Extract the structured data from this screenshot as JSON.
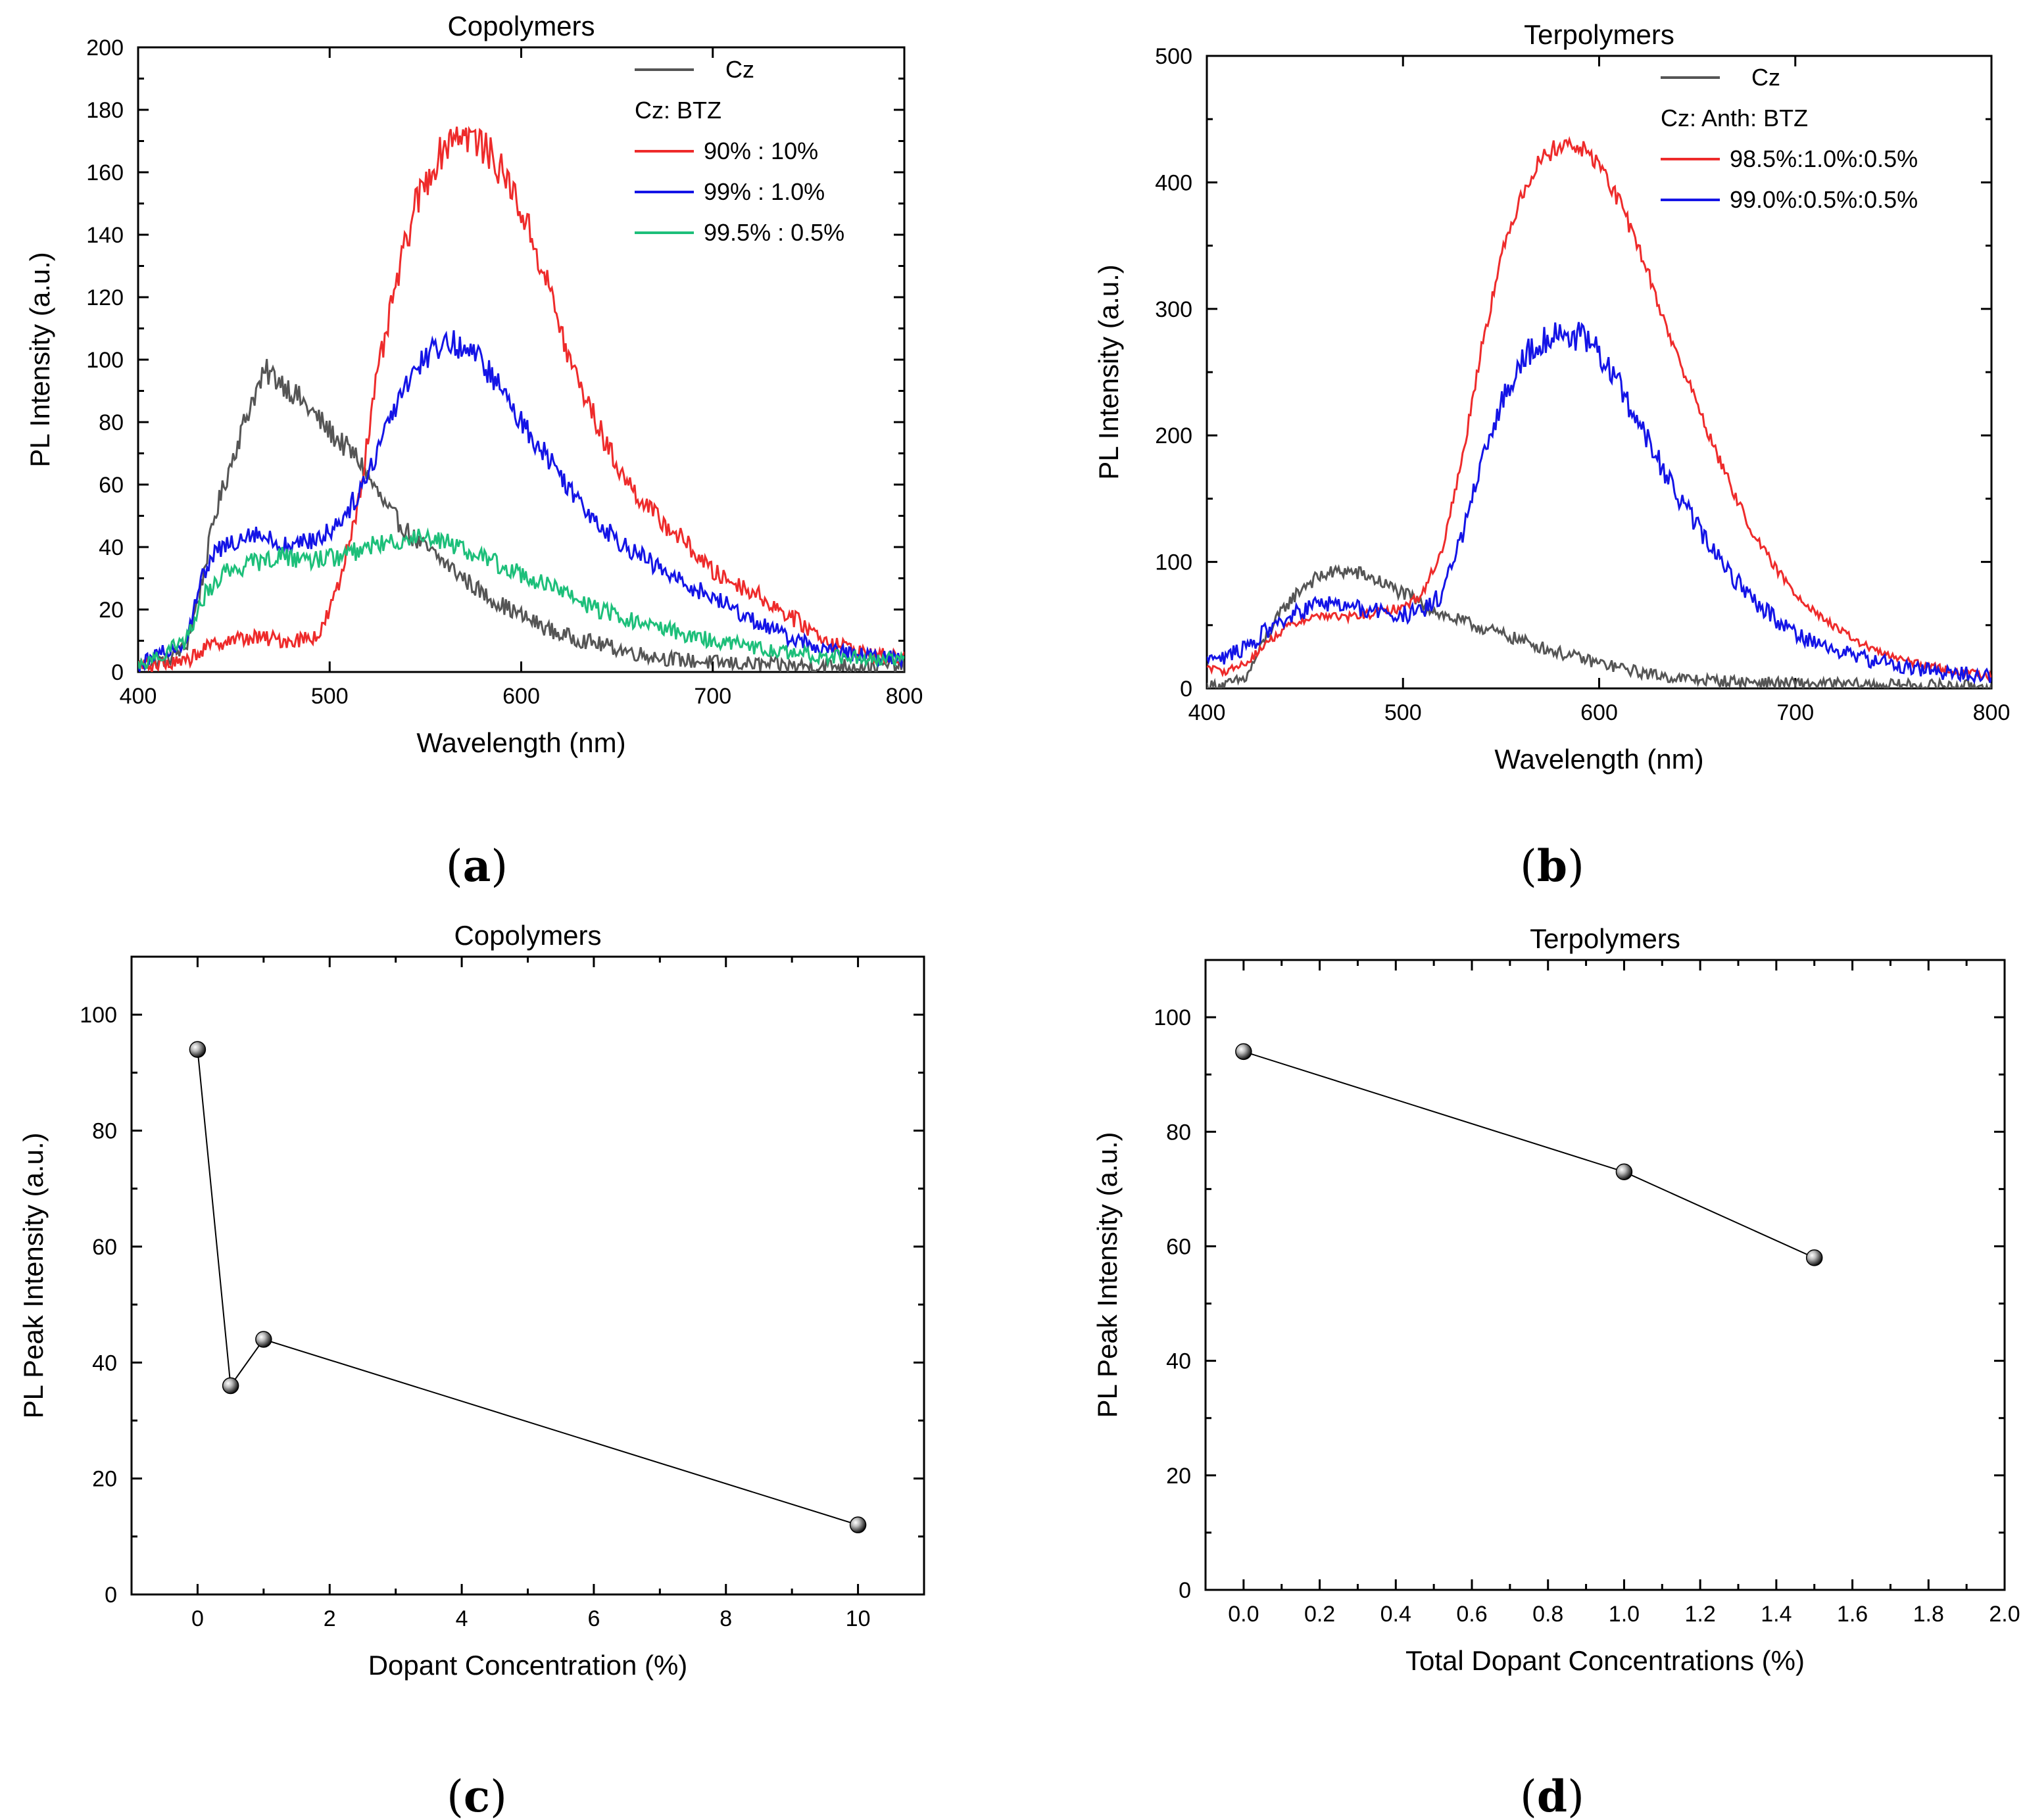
{
  "chart_data": [
    {
      "type": "line",
      "panel": "(a)",
      "panel_letter": "a",
      "title": "Copolymers",
      "xlabel": "Wavelength (nm)",
      "ylabel": "PL Intensity (a.u.)",
      "xlim": [
        400,
        800
      ],
      "ylim": [
        0,
        200
      ],
      "xticks": [
        400,
        500,
        600,
        700,
        800
      ],
      "yticks": [
        0,
        20,
        40,
        60,
        80,
        100,
        120,
        140,
        160,
        180,
        200
      ],
      "legend": {
        "position": "top-right",
        "header": "Cz: BTZ",
        "entries": [
          "Cz",
          "90% : 10%",
          "99% : 1.0%",
          "99.5% : 0.5%"
        ]
      },
      "series": [
        {
          "name": "Cz",
          "color": "#555555",
          "noise": 4,
          "points": [
            [
              400,
              2
            ],
            [
              415,
              4
            ],
            [
              425,
              8
            ],
            [
              432,
              25
            ],
            [
              440,
              50
            ],
            [
              450,
              70
            ],
            [
              460,
              88
            ],
            [
              467,
              96
            ],
            [
              475,
              93
            ],
            [
              485,
              87
            ],
            [
              500,
              77
            ],
            [
              515,
              68
            ],
            [
              530,
              52
            ],
            [
              545,
              42
            ],
            [
              560,
              35
            ],
            [
              580,
              25
            ],
            [
              600,
              18
            ],
            [
              620,
              12
            ],
            [
              640,
              9
            ],
            [
              660,
              6
            ],
            [
              680,
              4
            ],
            [
              700,
              3
            ],
            [
              740,
              2
            ],
            [
              800,
              2
            ]
          ]
        },
        {
          "name": "90% : 10%",
          "color": "#ee2b2b",
          "noise": 4,
          "points": [
            [
              400,
              2
            ],
            [
              425,
              3
            ],
            [
              430,
              6
            ],
            [
              445,
              10
            ],
            [
              460,
              11
            ],
            [
              480,
              10
            ],
            [
              495,
              12
            ],
            [
              505,
              28
            ],
            [
              515,
              55
            ],
            [
              525,
              95
            ],
            [
              535,
              125
            ],
            [
              545,
              150
            ],
            [
              555,
              163
            ],
            [
              565,
              173
            ],
            [
              575,
              171
            ],
            [
              585,
              165
            ],
            [
              595,
              155
            ],
            [
              605,
              140
            ],
            [
              615,
              122
            ],
            [
              625,
              100
            ],
            [
              635,
              86
            ],
            [
              645,
              72
            ],
            [
              655,
              61
            ],
            [
              670,
              50
            ],
            [
              685,
              42
            ],
            [
              700,
              32
            ],
            [
              720,
              26
            ],
            [
              740,
              18
            ],
            [
              760,
              10
            ],
            [
              780,
              6
            ],
            [
              800,
              4
            ]
          ]
        },
        {
          "name": "99% : 1.0%",
          "color": "#1414e6",
          "noise": 4,
          "points": [
            [
              400,
              2
            ],
            [
              425,
              10
            ],
            [
              432,
              28
            ],
            [
              440,
              38
            ],
            [
              450,
              42
            ],
            [
              460,
              45
            ],
            [
              470,
              42
            ],
            [
              480,
              40
            ],
            [
              490,
              42
            ],
            [
              500,
              45
            ],
            [
              510,
              52
            ],
            [
              520,
              63
            ],
            [
              530,
              80
            ],
            [
              540,
              93
            ],
            [
              550,
              101
            ],
            [
              560,
              106
            ],
            [
              570,
              104
            ],
            [
              580,
              99
            ],
            [
              590,
              90
            ],
            [
              600,
              80
            ],
            [
              615,
              68
            ],
            [
              630,
              55
            ],
            [
              645,
              45
            ],
            [
              660,
              38
            ],
            [
              680,
              30
            ],
            [
              700,
              24
            ],
            [
              720,
              17
            ],
            [
              740,
              11
            ],
            [
              760,
              7
            ],
            [
              780,
              5
            ],
            [
              800,
              4
            ]
          ]
        },
        {
          "name": "99.5% : 0.5%",
          "color": "#1dbf7a",
          "noise": 4,
          "points": [
            [
              400,
              2
            ],
            [
              425,
              10
            ],
            [
              435,
              25
            ],
            [
              445,
              32
            ],
            [
              460,
              35
            ],
            [
              475,
              37
            ],
            [
              490,
              36
            ],
            [
              505,
              37
            ],
            [
              520,
              40
            ],
            [
              535,
              42
            ],
            [
              550,
              44
            ],
            [
              560,
              42
            ],
            [
              575,
              38
            ],
            [
              590,
              34
            ],
            [
              605,
              30
            ],
            [
              620,
              26
            ],
            [
              640,
              20
            ],
            [
              660,
              16
            ],
            [
              680,
              13
            ],
            [
              700,
              10
            ],
            [
              720,
              8
            ],
            [
              740,
              6
            ],
            [
              760,
              5
            ],
            [
              800,
              4
            ]
          ]
        }
      ]
    },
    {
      "type": "line",
      "panel": "(b)",
      "panel_letter": "b",
      "title": "Terpolymers",
      "xlabel": "Wavelength (nm)",
      "ylabel": "PL Intensity (a.u.)",
      "xlim": [
        400,
        800
      ],
      "ylim": [
        0,
        500
      ],
      "xticks": [
        400,
        500,
        600,
        700,
        800
      ],
      "yticks": [
        0,
        100,
        200,
        300,
        400,
        500
      ],
      "legend": {
        "position": "top-right",
        "header": "Cz: Anth: BTZ",
        "entries": [
          "Cz",
          "98.5%:1.0%:0.5%",
          "99.0%:0.5%:0.5%"
        ]
      },
      "series": [
        {
          "name": "Cz",
          "color": "#555555",
          "noise": 3,
          "points": [
            [
              400,
              2
            ],
            [
              410,
              3
            ],
            [
              420,
              8
            ],
            [
              430,
              40
            ],
            [
              440,
              65
            ],
            [
              450,
              82
            ],
            [
              460,
              90
            ],
            [
              470,
              93
            ],
            [
              480,
              90
            ],
            [
              490,
              83
            ],
            [
              500,
              75
            ],
            [
              510,
              67
            ],
            [
              520,
              58
            ],
            [
              540,
              48
            ],
            [
              560,
              38
            ],
            [
              580,
              28
            ],
            [
              600,
              20
            ],
            [
              620,
              13
            ],
            [
              640,
              8
            ],
            [
              660,
              6
            ],
            [
              680,
              5
            ],
            [
              700,
              4
            ],
            [
              740,
              3
            ],
            [
              800,
              2
            ]
          ]
        },
        {
          "name": "98.5%:1.0%:0.5%",
          "color": "#ee2b2b",
          "noise": 2,
          "points": [
            [
              400,
              15
            ],
            [
              410,
              14
            ],
            [
              420,
              20
            ],
            [
              430,
              35
            ],
            [
              440,
              48
            ],
            [
              450,
              55
            ],
            [
              460,
              58
            ],
            [
              470,
              56
            ],
            [
              480,
              58
            ],
            [
              490,
              61
            ],
            [
              500,
              64
            ],
            [
              510,
              75
            ],
            [
              520,
              110
            ],
            [
              530,
              180
            ],
            [
              540,
              270
            ],
            [
              550,
              340
            ],
            [
              560,
              390
            ],
            [
              570,
              418
            ],
            [
              580,
              430
            ],
            [
              590,
              428
            ],
            [
              600,
              415
            ],
            [
              610,
              385
            ],
            [
              620,
              350
            ],
            [
              630,
              305
            ],
            [
              640,
              262
            ],
            [
              650,
              225
            ],
            [
              660,
              185
            ],
            [
              670,
              150
            ],
            [
              680,
              118
            ],
            [
              690,
              95
            ],
            [
              700,
              75
            ],
            [
              720,
              48
            ],
            [
              740,
              30
            ],
            [
              760,
              20
            ],
            [
              780,
              14
            ],
            [
              800,
              10
            ]
          ]
        },
        {
          "name": "99.0%:0.5%:0.5%",
          "color": "#1414e6",
          "noise": 4,
          "points": [
            [
              400,
              28
            ],
            [
              410,
              25
            ],
            [
              420,
              32
            ],
            [
              430,
              45
            ],
            [
              440,
              55
            ],
            [
              450,
              62
            ],
            [
              460,
              68
            ],
            [
              470,
              65
            ],
            [
              480,
              62
            ],
            [
              490,
              60
            ],
            [
              500,
              58
            ],
            [
              510,
              60
            ],
            [
              520,
              75
            ],
            [
              530,
              120
            ],
            [
              540,
              175
            ],
            [
              550,
              225
            ],
            [
              560,
              260
            ],
            [
              570,
              275
            ],
            [
              580,
              280
            ],
            [
              590,
              278
            ],
            [
              600,
              265
            ],
            [
              610,
              240
            ],
            [
              620,
              210
            ],
            [
              630,
              180
            ],
            [
              640,
              152
            ],
            [
              650,
              128
            ],
            [
              660,
              105
            ],
            [
              670,
              85
            ],
            [
              680,
              68
            ],
            [
              690,
              55
            ],
            [
              700,
              44
            ],
            [
              720,
              30
            ],
            [
              740,
              22
            ],
            [
              760,
              16
            ],
            [
              780,
              12
            ],
            [
              800,
              10
            ]
          ]
        }
      ]
    },
    {
      "type": "scatter",
      "panel": "(c)",
      "panel_letter": "c",
      "title": "Copolymers",
      "xlabel": "Dopant Concentration (%)",
      "ylabel": "PL Peak Intensity (a.u.)",
      "xlim": [
        -1,
        11
      ],
      "ylim": [
        0,
        110
      ],
      "xticks": [
        0,
        2,
        4,
        6,
        8,
        10
      ],
      "yticks": [
        0,
        20,
        40,
        60,
        80,
        100
      ],
      "x": [
        0,
        0.5,
        1.0,
        10
      ],
      "y": [
        94,
        36,
        44,
        12
      ]
    },
    {
      "type": "scatter",
      "panel": "(d)",
      "panel_letter": "d",
      "title": "Terpolymers",
      "xlabel": "Total Dopant Concentrations (%)",
      "ylabel": "PL Peak Intensity (a.u.)",
      "xlim": [
        -0.1,
        2.0
      ],
      "ylim": [
        0,
        110
      ],
      "xticks": [
        0.0,
        0.2,
        0.4,
        0.6,
        0.8,
        1.0,
        1.2,
        1.4,
        1.6,
        1.8,
        2.0
      ],
      "xtick_labels": [
        "0.0",
        "0.2",
        "0.4",
        "0.6",
        "0.8",
        "1.0",
        "1.2",
        "1.4",
        "1.6",
        "1.8",
        "2.0"
      ],
      "yticks": [
        0,
        20,
        40,
        60,
        80,
        100
      ],
      "x": [
        0.0,
        1.0,
        1.5
      ],
      "y": [
        94,
        73,
        58
      ]
    }
  ]
}
